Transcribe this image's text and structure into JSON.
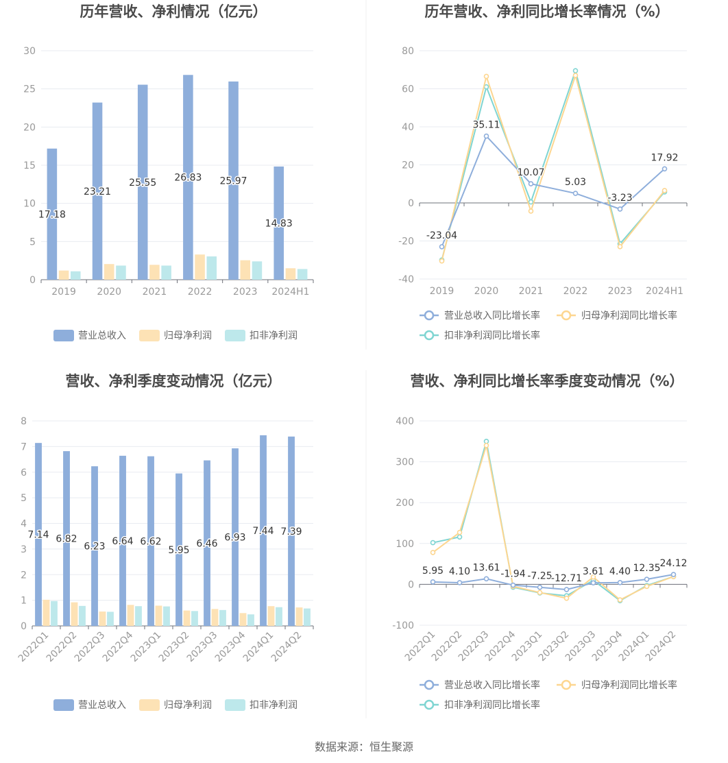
{
  "source": "数据来源：恒生聚源",
  "colors": {
    "revenue": "#8eaedb",
    "net_profit": "#fde2b5",
    "deducted_profit": "#8dd5d9",
    "revenue_line": "#8eaedb",
    "net_profit_line": "#fdd690",
    "deducted_profit_line": "#7fd5d2",
    "grid": "#e8ebf1",
    "axis": "#6e7079"
  },
  "chart_data": [
    {
      "id": "annual-bar",
      "type": "bar",
      "title": "历年营收、净利情况（亿元）",
      "categories": [
        "2019",
        "2020",
        "2021",
        "2022",
        "2023",
        "2024H1"
      ],
      "ylim": [
        0,
        30
      ],
      "yticks": [
        0,
        5,
        10,
        15,
        20,
        25,
        30
      ],
      "legend_position": "bottom",
      "series": [
        {
          "name": "营业总收入",
          "color": "#8eaedb",
          "values": [
            17.18,
            23.21,
            25.55,
            26.83,
            25.97,
            14.83
          ],
          "labels": [
            "17.18",
            "23.21",
            "25.55",
            "26.83",
            "25.97",
            "14.83"
          ]
        },
        {
          "name": "归母净利润",
          "color": "#fde2b5",
          "values": [
            1.2,
            2.05,
            1.95,
            3.3,
            2.55,
            1.5
          ]
        },
        {
          "name": "扣非净利润",
          "color": "#bde8eb",
          "values": [
            1.1,
            1.85,
            1.85,
            3.05,
            2.4,
            1.4
          ]
        }
      ]
    },
    {
      "id": "annual-line",
      "type": "line",
      "title": "历年营收、净利同比增长率情况（%）",
      "categories": [
        "2019",
        "2020",
        "2021",
        "2022",
        "2023",
        "2024H1"
      ],
      "ylim": [
        -40,
        80
      ],
      "yticks": [
        -40,
        -20,
        0,
        20,
        40,
        60,
        80
      ],
      "legend_position": "bottom",
      "series": [
        {
          "name": "营业总收入同比增长率",
          "color": "#8eaedb",
          "values": [
            -23.04,
            35.11,
            10.07,
            5.03,
            -3.23,
            17.92
          ],
          "labels": [
            "-23.04",
            "35.11",
            "10.07",
            "5.03",
            "-3.23",
            "17.92"
          ]
        },
        {
          "name": "归母净利润同比增长率",
          "color": "#fdd690",
          "values": [
            -30.5,
            66.5,
            -4.3,
            67.0,
            -23.0,
            6.5
          ]
        },
        {
          "name": "扣非净利润同比增长率",
          "color": "#7fd5d2",
          "values": [
            -30.0,
            61.0,
            0.5,
            69.5,
            -21.5,
            5.8
          ]
        }
      ]
    },
    {
      "id": "quarter-bar",
      "type": "bar",
      "title": "营收、净利季度变动情况（亿元）",
      "categories": [
        "2022Q1",
        "2022Q2",
        "2022Q3",
        "2022Q4",
        "2023Q1",
        "2023Q2",
        "2023Q3",
        "2023Q4",
        "2024Q1",
        "2024Q2"
      ],
      "ylim": [
        0,
        8
      ],
      "yticks": [
        0,
        1,
        2,
        3,
        4,
        5,
        6,
        7,
        8
      ],
      "legend_position": "bottom",
      "series": [
        {
          "name": "营业总收入",
          "color": "#8eaedb",
          "values": [
            7.14,
            6.82,
            6.23,
            6.64,
            6.62,
            5.95,
            6.46,
            6.93,
            7.44,
            7.39
          ],
          "labels": [
            "7.14",
            "6.82",
            "6.23",
            "6.64",
            "6.62",
            "5.95",
            "6.46",
            "6.93",
            "7.44",
            "7.39"
          ]
        },
        {
          "name": "归母净利润",
          "color": "#fde2b5",
          "values": [
            1.02,
            0.92,
            0.56,
            0.82,
            0.79,
            0.6,
            0.66,
            0.5,
            0.77,
            0.72
          ]
        },
        {
          "name": "扣非净利润",
          "color": "#bde8eb",
          "values": [
            0.97,
            0.78,
            0.55,
            0.77,
            0.76,
            0.58,
            0.62,
            0.45,
            0.73,
            0.68
          ]
        }
      ]
    },
    {
      "id": "quarter-line",
      "type": "line",
      "title": "营收、净利同比增长率季度变动情况（%）",
      "categories": [
        "2022Q1",
        "2022Q2",
        "2022Q3",
        "2022Q4",
        "2023Q1",
        "2023Q2",
        "2023Q3",
        "2023Q4",
        "2024Q1",
        "2024Q2"
      ],
      "ylim": [
        -100,
        400
      ],
      "yticks": [
        -100,
        0,
        100,
        200,
        300,
        400
      ],
      "legend_position": "bottom",
      "series": [
        {
          "name": "营业总收入同比增长率",
          "color": "#8eaedb",
          "values": [
            5.95,
            4.1,
            13.61,
            -1.94,
            -7.25,
            -12.71,
            3.61,
            4.4,
            12.35,
            24.12
          ],
          "labels": [
            "5.95",
            "4.10",
            "13.61",
            "-1.94",
            "-7.25",
            "-12.71",
            "3.61",
            "4.40",
            "12.35",
            "24.12"
          ]
        },
        {
          "name": "归母净利润同比增长率",
          "color": "#fdd690",
          "values": [
            78,
            127,
            340,
            -5,
            -20,
            -34,
            18,
            -38,
            -5,
            19
          ]
        },
        {
          "name": "扣非净利润同比增长率",
          "color": "#7fd5d2",
          "values": [
            102,
            116,
            350,
            -7,
            -21,
            -28,
            10,
            -40,
            -3,
            19
          ]
        }
      ]
    }
  ]
}
